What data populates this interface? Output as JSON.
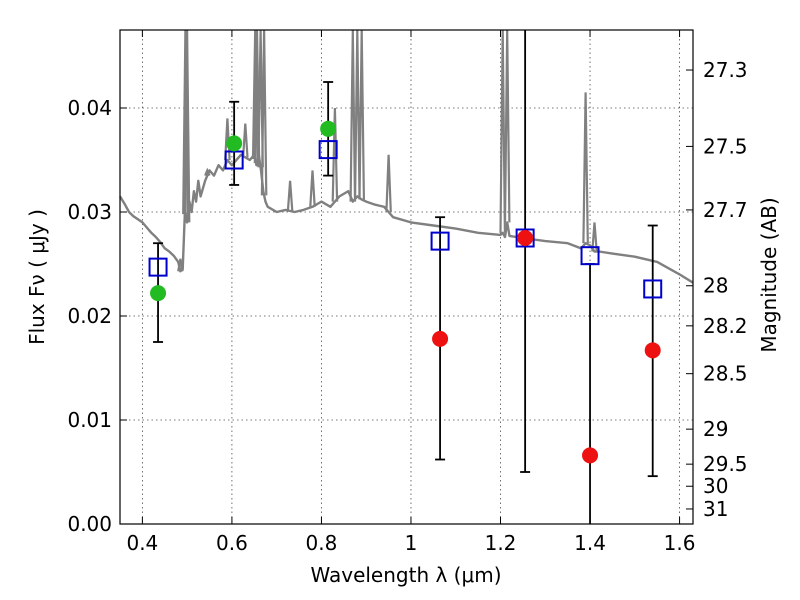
{
  "chart_data": {
    "type": "scatter",
    "title": "",
    "xlabel": "Wavelength  λ (μm)",
    "ylabel": "Flux  Fν  ( μJy )",
    "y2label": "Magnitude (AB)",
    "xlim": [
      0.35,
      1.63
    ],
    "ylim": [
      0.0,
      0.0475
    ],
    "xticks": [
      {
        "value": 0.4,
        "label": "0.4"
      },
      {
        "value": 0.6,
        "label": "0.6"
      },
      {
        "value": 0.8,
        "label": "0.8"
      },
      {
        "value": 1.0,
        "label": "1"
      },
      {
        "value": 1.2,
        "label": "1.2"
      },
      {
        "value": 1.4,
        "label": "1.4"
      },
      {
        "value": 1.6,
        "label": "1.6"
      }
    ],
    "yticks": [
      {
        "value": 0.0,
        "label": "0.00"
      },
      {
        "value": 0.01,
        "label": "0.01"
      },
      {
        "value": 0.02,
        "label": "0.02"
      },
      {
        "value": 0.03,
        "label": "0.03"
      },
      {
        "value": 0.04,
        "label": "0.04"
      }
    ],
    "y2ticks": [
      {
        "mag": 27.3,
        "label": "27.3"
      },
      {
        "mag": 27.5,
        "label": "27.5"
      },
      {
        "mag": 27.7,
        "label": "27.7"
      },
      {
        "mag": 28.0,
        "label": "28"
      },
      {
        "mag": 28.2,
        "label": "28.2"
      },
      {
        "mag": 28.5,
        "label": "28.5"
      },
      {
        "mag": 29.0,
        "label": "29"
      },
      {
        "mag": 29.5,
        "label": "29.5"
      },
      {
        "mag": 30.0,
        "label": "30"
      },
      {
        "mag": 31.0,
        "label": "31"
      }
    ],
    "grid": true,
    "colors": {
      "model": "#808080",
      "detection": "#22bb22",
      "nondetection": "#ee1111",
      "model_band": "#0000cc",
      "errorbar": "#000000"
    },
    "series": [
      {
        "name": "model spectrum",
        "kind": "line",
        "x": [
          0.35,
          0.36,
          0.37,
          0.38,
          0.39,
          0.4,
          0.41,
          0.42,
          0.43,
          0.44,
          0.45,
          0.46,
          0.47,
          0.48,
          0.485,
          0.49,
          0.495,
          0.5,
          0.505,
          0.51,
          0.515,
          0.52,
          0.525,
          0.53,
          0.54,
          0.55,
          0.56,
          0.57,
          0.58,
          0.59,
          0.6,
          0.62,
          0.64,
          0.65,
          0.655,
          0.66,
          0.665,
          0.67,
          0.675,
          0.68,
          0.7,
          0.72,
          0.74,
          0.76,
          0.78,
          0.8,
          0.82,
          0.84,
          0.86,
          0.87,
          0.88,
          0.89,
          0.9,
          0.92,
          0.94,
          0.95,
          0.96,
          1.0,
          1.05,
          1.1,
          1.15,
          1.2,
          1.205,
          1.21,
          1.215,
          1.22,
          1.25,
          1.3,
          1.35,
          1.38,
          1.39,
          1.4,
          1.41,
          1.42,
          1.45,
          1.5,
          1.55,
          1.6,
          1.63
        ],
        "y": [
          0.0315,
          0.0308,
          0.03,
          0.0296,
          0.0293,
          0.029,
          0.0285,
          0.028,
          0.0276,
          0.0271,
          0.0265,
          0.0262,
          0.0258,
          0.0252,
          0.0243,
          0.0245,
          0.03,
          0.029,
          0.031,
          0.03,
          0.032,
          0.031,
          0.033,
          0.0315,
          0.033,
          0.034,
          0.0335,
          0.0345,
          0.034,
          0.035,
          0.0345,
          0.0355,
          0.035,
          0.0355,
          0.0345,
          0.0355,
          0.034,
          0.032,
          0.031,
          0.0305,
          0.03,
          0.0302,
          0.03,
          0.0302,
          0.0305,
          0.031,
          0.0305,
          0.0315,
          0.032,
          0.031,
          0.0315,
          0.0312,
          0.031,
          0.0307,
          0.0305,
          0.03,
          0.0295,
          0.029,
          0.0287,
          0.0284,
          0.028,
          0.0278,
          0.028,
          0.0276,
          0.029,
          0.0277,
          0.0275,
          0.0272,
          0.027,
          0.0265,
          0.027,
          0.0268,
          0.0262,
          0.0262,
          0.026,
          0.0257,
          0.0252,
          0.024,
          0.0232
        ]
      },
      {
        "name": "emission lines",
        "kind": "spikes",
        "lines": [
          {
            "x": 0.485,
            "y": 0.0255
          },
          {
            "x": 0.496,
            "y": 0.0475
          },
          {
            "x": 0.5,
            "y": 0.0475
          },
          {
            "x": 0.545,
            "y": 0.034
          },
          {
            "x": 0.59,
            "y": 0.039
          },
          {
            "x": 0.63,
            "y": 0.0385
          },
          {
            "x": 0.652,
            "y": 0.0475
          },
          {
            "x": 0.656,
            "y": 0.0475
          },
          {
            "x": 0.664,
            "y": 0.0475
          },
          {
            "x": 0.672,
            "y": 0.0475
          },
          {
            "x": 0.73,
            "y": 0.033
          },
          {
            "x": 0.78,
            "y": 0.034
          },
          {
            "x": 0.83,
            "y": 0.04
          },
          {
            "x": 0.87,
            "y": 0.0475
          },
          {
            "x": 0.88,
            "y": 0.0475
          },
          {
            "x": 0.89,
            "y": 0.0475
          },
          {
            "x": 0.95,
            "y": 0.0355
          },
          {
            "x": 1.205,
            "y": 0.0475
          },
          {
            "x": 1.215,
            "y": 0.0475
          },
          {
            "x": 1.39,
            "y": 0.0415
          },
          {
            "x": 1.41,
            "y": 0.029
          }
        ]
      },
      {
        "name": "model band fluxes",
        "kind": "open-squares",
        "x": [
          0.435,
          0.605,
          0.815,
          1.065,
          1.255,
          1.4,
          1.54
        ],
        "y": [
          0.0247,
          0.035,
          0.036,
          0.0272,
          0.0275,
          0.0258,
          0.0226
        ]
      },
      {
        "name": "detections",
        "kind": "points",
        "x": [
          0.435,
          0.605,
          0.815
        ],
        "y": [
          0.0222,
          0.0366,
          0.038
        ],
        "err_low": [
          0.0175,
          0.0326,
          0.0335
        ],
        "err_high": [
          0.027,
          0.0406,
          0.0425
        ]
      },
      {
        "name": "non-detections",
        "kind": "points",
        "x": [
          1.065,
          1.255,
          1.4,
          1.54
        ],
        "y": [
          0.0178,
          0.0275,
          0.0066,
          0.0167
        ],
        "err_low": [
          0.0062,
          0.005,
          0.0,
          0.0046
        ],
        "err_high": [
          0.0295,
          0.0475,
          0.025,
          0.0287
        ]
      }
    ]
  }
}
